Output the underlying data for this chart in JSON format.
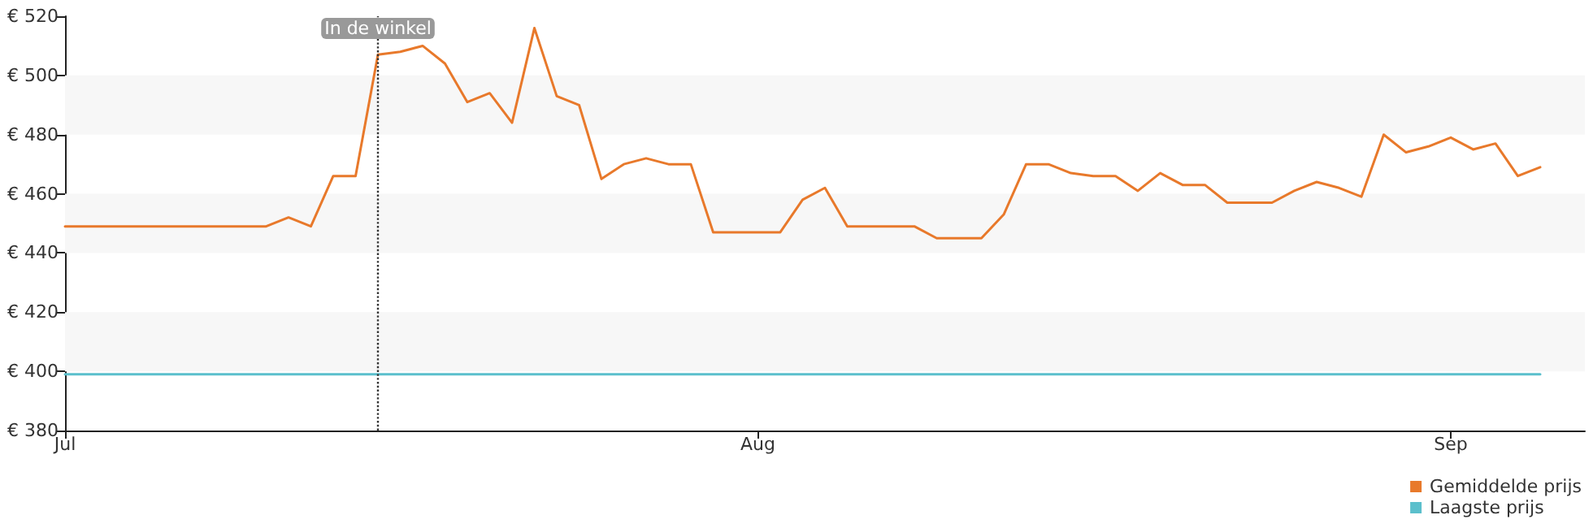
{
  "chart_data": {
    "type": "line",
    "x": [
      "--07-01",
      "--07-02",
      "--07-03",
      "--07-04",
      "--07-05",
      "--07-06",
      "--07-07",
      "--07-08",
      "--07-09",
      "--07-10",
      "--07-11",
      "--07-12",
      "--07-13",
      "--07-14",
      "--07-15",
      "--07-16",
      "--07-17",
      "--07-18",
      "--07-19",
      "--07-20",
      "--07-21",
      "--07-22",
      "--07-23",
      "--07-24",
      "--07-25",
      "--07-26",
      "--07-27",
      "--07-28",
      "--07-29",
      "--07-30",
      "--07-31",
      "--08-01",
      "--08-02",
      "--08-03",
      "--08-04",
      "--08-05",
      "--08-06",
      "--08-07",
      "--08-08",
      "--08-09",
      "--08-10",
      "--08-11",
      "--08-12",
      "--08-13",
      "--08-14",
      "--08-15",
      "--08-16",
      "--08-17",
      "--08-18",
      "--08-19",
      "--08-20",
      "--08-21",
      "--08-22",
      "--08-23",
      "--08-24",
      "--08-25",
      "--08-26",
      "--08-27",
      "--08-28",
      "--08-29",
      "--08-30",
      "--08-31",
      "--09-01",
      "--09-02",
      "--09-03",
      "--09-04",
      "--09-05"
    ],
    "series": [
      {
        "name": "Gemiddelde prijs",
        "color": "#e8792b",
        "values": [
          449,
          449,
          449,
          449,
          449,
          449,
          449,
          449,
          449,
          449,
          452,
          449,
          466,
          466,
          507,
          508,
          510,
          504,
          491,
          494,
          484,
          516,
          493,
          490,
          465,
          470,
          472,
          470,
          470,
          447,
          447,
          447,
          447,
          458,
          462,
          449,
          449,
          449,
          449,
          445,
          445,
          445,
          453,
          470,
          470,
          467,
          466,
          466,
          461,
          467,
          463,
          463,
          457,
          457,
          457,
          461,
          464,
          462,
          459,
          480,
          474,
          476,
          479,
          475,
          477,
          466,
          469
        ]
      },
      {
        "name": "Laagste prijs",
        "color": "#5bbfcc",
        "x": [
          "--07-01",
          "--09-05"
        ],
        "values": [
          399,
          399
        ]
      }
    ],
    "xlim": [
      "--07-01",
      "--09-07"
    ],
    "xticks": [
      {
        "value": "--07-01",
        "label": "Jul"
      },
      {
        "value": "--08-01",
        "label": "Aug"
      },
      {
        "value": "--09-01",
        "label": "Sep"
      }
    ],
    "ylim": [
      380,
      520
    ],
    "yticks": [
      {
        "value": 380,
        "label": "€ 380"
      },
      {
        "value": 400,
        "label": "€ 400"
      },
      {
        "value": 420,
        "label": "€ 420"
      },
      {
        "value": 440,
        "label": "€ 440"
      },
      {
        "value": 460,
        "label": "€ 460"
      },
      {
        "value": 480,
        "label": "€ 480"
      },
      {
        "value": 500,
        "label": "€ 500"
      },
      {
        "value": 520,
        "label": "€ 520"
      }
    ],
    "ref_lines": [
      {
        "axis": "x",
        "value": "--07-15",
        "label": "In de winkel",
        "line_style": "dotted",
        "color": "#333333"
      }
    ],
    "bands": [
      {
        "axis": "y",
        "from": 400,
        "to": 420,
        "color": "#f7f7f7"
      },
      {
        "axis": "y",
        "from": 440,
        "to": 460,
        "color": "#f7f7f7"
      },
      {
        "axis": "y",
        "from": 480,
        "to": 500,
        "color": "#f7f7f7"
      }
    ],
    "legend": "bottom right",
    "marker": "none",
    "line_style": "solid"
  }
}
